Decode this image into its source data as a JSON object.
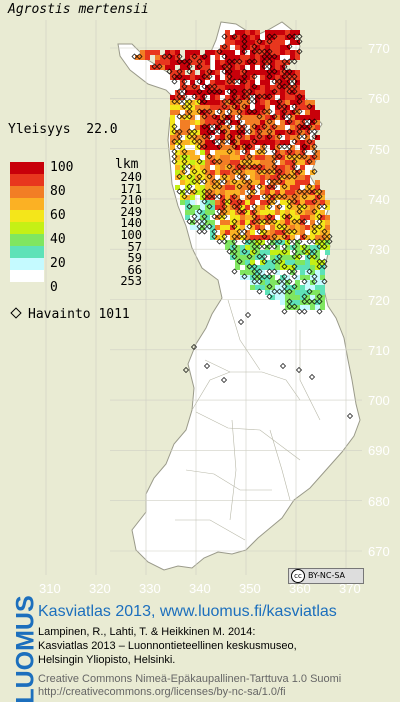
{
  "map": {
    "species": "Agrostis mertensii",
    "commonness_label": "Yleisyys",
    "commonness_value": "22.0",
    "legend": {
      "scale_labels": [
        "100",
        "80",
        "60",
        "40",
        "20",
        "0"
      ],
      "count_header": "lkm",
      "counts": [
        "240",
        "171",
        "210",
        "249",
        "140",
        "100",
        "57",
        "59",
        "66",
        "253"
      ],
      "colors": [
        "#c8000a",
        "#e8371e",
        "#f27e25",
        "#fbb124",
        "#f4e61a",
        "#c5f015",
        "#80e660",
        "#5ee2b8",
        "#c5faff",
        "#ffffff"
      ]
    },
    "observation_label": "Havainto",
    "observation_count": "1011",
    "y_axis": [
      "770",
      "760",
      "750",
      "740",
      "730",
      "720",
      "710",
      "700",
      "690",
      "680",
      "670"
    ],
    "x_axis": [
      "310",
      "320",
      "330",
      "340",
      "350",
      "360",
      "370"
    ],
    "license_badge": "BY-NC-SA"
  },
  "footer": {
    "title": "Kasviatlas 2013, www.luomus.fi/kasviatlas",
    "citation_1": "Lampinen, R., Lahti, T. & Heikkinen M. 2014:",
    "citation_2": "Kasviatlas 2013 – Luonnontieteellinen keskusmuseo,",
    "citation_3": "Helsingin Yliopisto, Helsinki.",
    "license_1": "Creative Commons Nimeä-Epäkaupallinen-Tarttuva 1.0 Suomi",
    "license_2": "http://creativecommons.org/licenses/by-nc-sa/1.0/fi",
    "logo": "LUOMUS"
  }
}
